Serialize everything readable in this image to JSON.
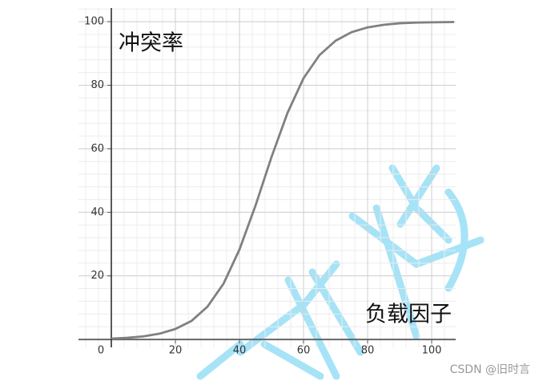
{
  "chart_data": {
    "type": "line",
    "x_label": "负载因子",
    "y_label": "冲突率",
    "x": [
      0,
      5,
      10,
      15,
      20,
      25,
      30,
      35,
      40,
      45,
      50,
      55,
      60,
      65,
      70,
      75,
      80,
      85,
      90,
      95,
      100,
      107
    ],
    "series": [
      {
        "color": "#808080",
        "values": [
          0.28,
          0.53,
          0.97,
          1.8,
          3.3,
          5.8,
          10.3,
          17.5,
          28.3,
          42.1,
          57.4,
          71.3,
          82.2,
          89.5,
          94.0,
          96.7,
          98.2,
          99.0,
          99.5,
          99.7,
          99.8,
          99.9
        ]
      }
    ],
    "xlim": [
      -10.25,
      107.5
    ],
    "ylim": [
      -2.5,
      104.3
    ],
    "xticks": [
      0,
      20,
      40,
      60,
      80,
      100
    ],
    "yticks": [
      20,
      40,
      60,
      80,
      100
    ],
    "grid": true
  },
  "watermark": "CSDN @旧时言"
}
